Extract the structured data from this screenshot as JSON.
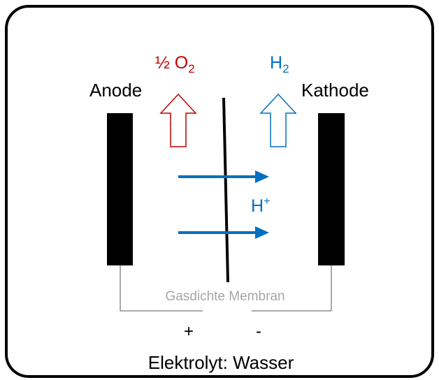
{
  "diagram": {
    "oxygen": {
      "text": "½ O",
      "subscript": "2"
    },
    "hydrogen": {
      "text": "H",
      "subscript": "2"
    },
    "anode": "Anode",
    "cathode": "Kathode",
    "proton": {
      "text": "H",
      "superscript": "+"
    },
    "membrane": "Gasdichte Membran",
    "plus": "+",
    "minus": "-",
    "electrolyte": "Elektrolyt: Wasser"
  }
}
